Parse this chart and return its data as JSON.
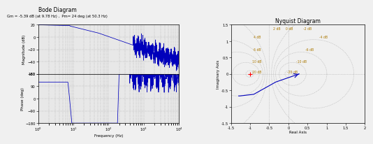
{
  "bode_title": "Bode Diagram",
  "bode_subtitle": "Gm = -5.39 dB (at 9.78 Hz) ,  Pm= 24 deg (at 50.3 Hz)",
  "nyquist_title": "Nyquist Diagram",
  "mag_ylim": [
    -60,
    20
  ],
  "mag_yticks": [
    -60,
    -40,
    -20,
    0,
    20
  ],
  "phase_ylim": [
    -180,
    180
  ],
  "phase_yticks": [
    -180,
    -90,
    0,
    90,
    180
  ],
  "freq_xlim_log": [
    0,
    4
  ],
  "xlabel": "Frequency (Hz)",
  "mag_ylabel": "Magnitude (dB)",
  "phase_ylabel": "Phase (deg)",
  "nyquist_xlabel": "Real Axis",
  "nyquist_ylabel": "Imaginary Axis",
  "nyquist_xlim": [
    -1.5,
    2.0
  ],
  "nyquist_ylim": [
    -1.5,
    1.5
  ],
  "nyquist_xticks": [
    -1.5,
    -1.0,
    -0.5,
    0.0,
    0.5,
    1.0,
    1.5,
    2.0
  ],
  "nyquist_yticks": [
    -1.5,
    -1.0,
    -0.5,
    0.0,
    0.5,
    1.0,
    1.5
  ],
  "line_color": "#0000bb",
  "bg_color": "#f0f0f0",
  "plot_bg": "#e8e8e8",
  "grid_color": "#999999",
  "db_label_color": "#aa7700",
  "db_values": [
    2,
    0,
    -2,
    -4,
    -6,
    -10,
    -20,
    4,
    6,
    10,
    20
  ]
}
